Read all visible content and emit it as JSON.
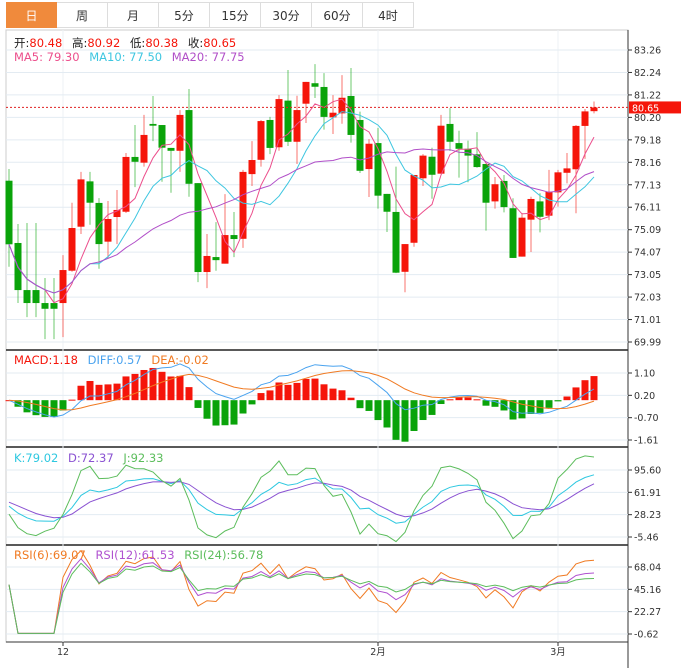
{
  "tabs": [
    {
      "label": "日",
      "active": true
    },
    {
      "label": "周"
    },
    {
      "label": "月"
    },
    {
      "label": "5分"
    },
    {
      "label": "15分"
    },
    {
      "label": "30分"
    },
    {
      "label": "60分"
    },
    {
      "label": "4时"
    }
  ],
  "ohlc_legend": {
    "open_label": "开:",
    "open": "80.48",
    "high_label": "高:",
    "high": "80.92",
    "low_label": "低:",
    "low": "80.38",
    "close_label": "收:",
    "close": "80.65"
  },
  "ma_legend": {
    "ma5": "MA5: 79.30",
    "ma10": "MA10: 77.50",
    "ma20": "MA20: 77.75"
  },
  "macd_legend": {
    "macd": "MACD:1.18",
    "diff": "DIFF:0.57",
    "dea": "DEA:-0.02"
  },
  "kdj_legend": {
    "k": "K:79.02",
    "d": "D:72.37",
    "j": "J:92.33"
  },
  "rsi_legend": {
    "rsi6": "RSI(6):69.07",
    "rsi12": "RSI(12):61.53",
    "rsi24": "RSI(24):56.78"
  },
  "colors": {
    "up": "#f5150a",
    "down": "#0aa30a",
    "accent": "#f08a3c",
    "ma5": "#ec4f8c",
    "ma10": "#3ec6e0",
    "ma20": "#b14fc8",
    "diff": "#4aa3ef",
    "dea": "#f07a22",
    "k": "#2ec8e0",
    "d": "#8a52d2",
    "j": "#5cbd5c",
    "rsi6": "#f07a22",
    "rsi12": "#b052d0",
    "rsi24": "#5cbd5c"
  },
  "chart_data": {
    "type": "candlestick",
    "last_price": "80.65",
    "price_ticks": [
      "83.26",
      "82.24",
      "81.22",
      "80.20",
      "79.18",
      "78.16",
      "77.13",
      "76.11",
      "75.09",
      "74.07",
      "73.05",
      "72.03",
      "71.01",
      "69.99"
    ],
    "ylim": [
      69.99,
      83.26
    ],
    "macd_ticks": [
      "1.10",
      "0.20",
      "-0.70",
      "-1.61"
    ],
    "kdj_ticks": [
      "95.60",
      "61.91",
      "28.23",
      "-5.46"
    ],
    "rsi_ticks": [
      "68.04",
      "45.16",
      "22.27",
      "-0.62"
    ],
    "x_labels": [
      {
        "label": "12",
        "index": 6
      },
      {
        "label": "2月",
        "index": 41
      },
      {
        "label": "3月",
        "index": 61
      }
    ],
    "ohlc": [
      [
        77.32,
        77.85,
        73.41,
        74.43
      ],
      [
        74.49,
        75.35,
        71.76,
        72.35
      ],
      [
        72.35,
        75.4,
        71.12,
        71.76
      ],
      [
        72.35,
        75.4,
        71.12,
        71.76
      ],
      [
        71.76,
        72.9,
        70.12,
        71.5
      ],
      [
        71.76,
        72.9,
        70.12,
        71.5
      ],
      [
        71.76,
        73.94,
        70.21,
        73.26
      ],
      [
        73.23,
        76.32,
        73.18,
        75.17
      ],
      [
        75.23,
        77.72,
        74.9,
        77.38
      ],
      [
        77.29,
        77.72,
        75.32,
        76.32
      ],
      [
        76.31,
        76.53,
        73.32,
        74.44
      ],
      [
        74.55,
        76.4,
        73.81,
        75.58
      ],
      [
        75.67,
        76.9,
        74.44,
        75.99
      ],
      [
        75.91,
        78.58,
        75.85,
        78.4
      ],
      [
        78.4,
        79.85,
        77.03,
        78.18
      ],
      [
        78.14,
        80.31,
        77.96,
        79.4
      ],
      [
        79.9,
        81.17,
        79.12,
        79.82
      ],
      [
        79.85,
        79.85,
        77.27,
        78.82
      ],
      [
        78.81,
        78.81,
        76.77,
        78.68
      ],
      [
        78.68,
        80.53,
        77.72,
        80.31
      ],
      [
        80.53,
        81.49,
        76.59,
        77.18
      ],
      [
        77.21,
        77.21,
        72.71,
        73.17
      ],
      [
        73.17,
        74.9,
        72.44,
        73.9
      ],
      [
        73.85,
        75.44,
        73.23,
        73.71
      ],
      [
        73.55,
        76.71,
        73.55,
        74.85
      ],
      [
        74.85,
        75.9,
        73.85,
        74.67
      ],
      [
        74.68,
        77.81,
        74.27,
        77.72
      ],
      [
        77.62,
        79.12,
        77.08,
        78.26
      ],
      [
        78.27,
        80.08,
        77.96,
        80.03
      ],
      [
        80.08,
        80.22,
        78.53,
        78.81
      ],
      [
        78.84,
        81.21,
        78.68,
        81.03
      ],
      [
        80.96,
        82.35,
        78.9,
        79.09
      ],
      [
        79.09,
        81.18,
        78.08,
        80.53
      ],
      [
        80.82,
        81.81,
        79.94,
        81.81
      ],
      [
        81.75,
        82.62,
        81.08,
        81.59
      ],
      [
        81.58,
        82.21,
        79.64,
        80.22
      ],
      [
        80.2,
        81.21,
        79.44,
        80.41
      ],
      [
        80.38,
        82.12,
        79.91,
        81.09
      ],
      [
        81.17,
        82.44,
        79.05,
        79.4
      ],
      [
        80.08,
        80.46,
        77.67,
        77.77
      ],
      [
        77.85,
        79.21,
        76.58,
        79.0
      ],
      [
        79.03,
        79.72,
        76.05,
        76.64
      ],
      [
        76.72,
        76.72,
        74.99,
        75.91
      ],
      [
        75.9,
        77.96,
        73.12,
        73.14
      ],
      [
        73.18,
        74.44,
        72.25,
        74.44
      ],
      [
        74.5,
        77.58,
        74.32,
        77.58
      ],
      [
        77.43,
        78.53,
        77.08,
        78.46
      ],
      [
        78.41,
        78.82,
        76.5,
        77.59
      ],
      [
        77.64,
        80.31,
        77.64,
        79.82
      ],
      [
        79.9,
        80.62,
        78.67,
        79.09
      ],
      [
        79.03,
        79.59,
        77.46,
        78.77
      ],
      [
        78.77,
        79.14,
        77.25,
        78.46
      ],
      [
        78.52,
        79.53,
        77.91,
        77.94
      ],
      [
        78.08,
        78.08,
        75.05,
        76.32
      ],
      [
        76.38,
        77.49,
        76.05,
        77.16
      ],
      [
        77.31,
        77.58,
        75.88,
        76.12
      ],
      [
        76.07,
        76.52,
        73.81,
        73.81
      ],
      [
        73.87,
        75.85,
        73.87,
        75.64
      ],
      [
        75.55,
        76.59,
        74.08,
        76.49
      ],
      [
        76.38,
        76.75,
        74.97,
        75.68
      ],
      [
        75.73,
        77.81,
        75.53,
        76.82
      ],
      [
        76.79,
        77.81,
        76.14,
        77.7
      ],
      [
        77.68,
        78.58,
        77.2,
        77.88
      ],
      [
        77.84,
        79.85,
        75.84,
        79.81
      ],
      [
        79.81,
        80.58,
        78.31,
        80.47
      ],
      [
        80.48,
        80.92,
        80.38,
        80.65
      ]
    ]
  }
}
